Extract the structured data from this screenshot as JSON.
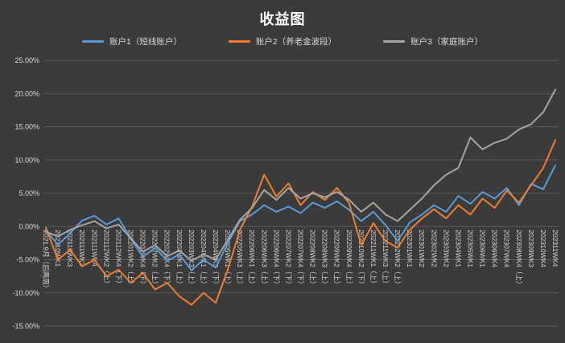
{
  "title": "收益图",
  "colors": {
    "background": "#3b3b3b",
    "grid": "#595959",
    "text": "#d9d9d9",
    "title": "#ffffff",
    "series_blue": "#5B9BD5",
    "series_orange": "#ED7D31",
    "series_gray": "#A5A5A5"
  },
  "chart_data": {
    "type": "line",
    "title": "收益图",
    "xlabel": "",
    "ylabel": "",
    "ylim": [
      -15,
      25
    ],
    "ytick_step": 5,
    "ytick_format": "0.00%",
    "grid": true,
    "legend_position": "top",
    "categories": [
      "2021.9月（后两周）",
      "202110WK1",
      "202110WK3",
      "202111WK2",
      "202111WK4",
      "202112WK2（上）",
      "202112WK4（下）",
      "202201WK2（上）",
      "202201WK4（下）",
      "202202WK2（上）",
      "202202WK4（下）",
      "202203WK1（上）",
      "202203WK3（上）",
      "202204WK1（上）",
      "202204WK3（下）",
      "202205WK1（上）",
      "202205WK3（上）",
      "202206WK1（上）",
      "202206WK3（上）",
      "202206WK4（下）",
      "202207WK2（下）",
      "202207WK4（下）",
      "202208WK2（上）",
      "202208WK3（上）",
      "202209WK2（上）",
      "202209WK4（上）",
      "202210WK2（下）",
      "202211WK1（上）",
      "202211WK3（上）",
      "202212WK2（上）",
      "202301WK1",
      "202301WK2",
      "202302WK2",
      "202303WK2",
      "202304WK1",
      "202305WK1",
      "202306WK1",
      "202306WK4",
      "202307WK4",
      "202308WK4（上）",
      "202309WK3",
      "202310WK4",
      "202311WK4"
    ],
    "series": [
      {
        "name": "账户1（短线账户）",
        "color": "#5B9BD5",
        "values": [
          -0.5,
          -2.8,
          -1.0,
          0.9,
          1.6,
          0.3,
          1.2,
          -1.8,
          -4.6,
          -3.2,
          -5.2,
          -4.2,
          -6.6,
          -5.0,
          -6.2,
          -2.5,
          0.8,
          1.8,
          3.2,
          2.2,
          3.0,
          2.0,
          3.6,
          2.8,
          3.8,
          2.5,
          0.8,
          2.2,
          0.2,
          -2.2,
          0.6,
          1.8,
          3.2,
          2.2,
          4.6,
          3.4,
          5.2,
          4.2,
          5.8,
          3.2,
          6.4,
          5.6,
          9.2
        ]
      },
      {
        "name": "账户2（养老金波段）",
        "color": "#ED7D31",
        "values": [
          -0.2,
          -5.0,
          -3.5,
          -6.0,
          -5.0,
          -7.5,
          -6.5,
          -8.5,
          -7.0,
          -9.5,
          -8.5,
          -10.5,
          -11.8,
          -10.0,
          -11.5,
          -6.5,
          -0.5,
          3.0,
          7.8,
          4.5,
          6.5,
          3.2,
          5.2,
          4.0,
          5.8,
          3.5,
          -2.8,
          0.5,
          -2.2,
          -3.2,
          -0.5,
          1.2,
          2.6,
          1.2,
          3.2,
          1.8,
          4.2,
          2.8,
          5.4,
          3.6,
          6.2,
          8.8,
          13.0
        ]
      },
      {
        "name": "账户3（家庭账户）",
        "color": "#A5A5A5",
        "values": [
          -0.8,
          -1.5,
          -0.5,
          0.2,
          0.8,
          -0.3,
          0.3,
          -1.8,
          -3.8,
          -2.8,
          -4.5,
          -3.6,
          -5.2,
          -4.2,
          -5.0,
          -2.0,
          1.0,
          2.8,
          5.5,
          4.0,
          5.8,
          4.2,
          5.0,
          4.4,
          5.2,
          4.0,
          2.2,
          3.6,
          1.8,
          0.8,
          2.5,
          4.2,
          6.2,
          7.8,
          8.8,
          13.4,
          11.6,
          12.6,
          13.2,
          14.6,
          15.4,
          17.2,
          20.6
        ]
      }
    ]
  }
}
